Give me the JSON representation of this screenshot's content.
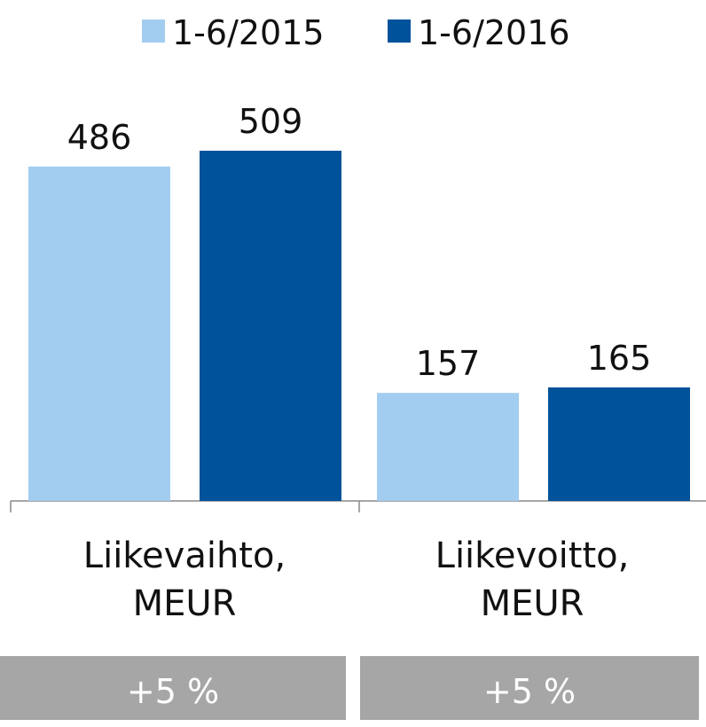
{
  "chart_data": {
    "type": "bar",
    "categories": [
      "Liikevaihto, MEUR",
      "Liikevoitto, MEUR"
    ],
    "series": [
      {
        "name": "1-6/2015",
        "color": "#a3cdf0",
        "values": [
          486,
          157
        ]
      },
      {
        "name": "1-6/2016",
        "color": "#00529b",
        "values": [
          509,
          165
        ]
      }
    ],
    "legend": "top",
    "changes": [
      "+5 %",
      "+5 %"
    ]
  }
}
